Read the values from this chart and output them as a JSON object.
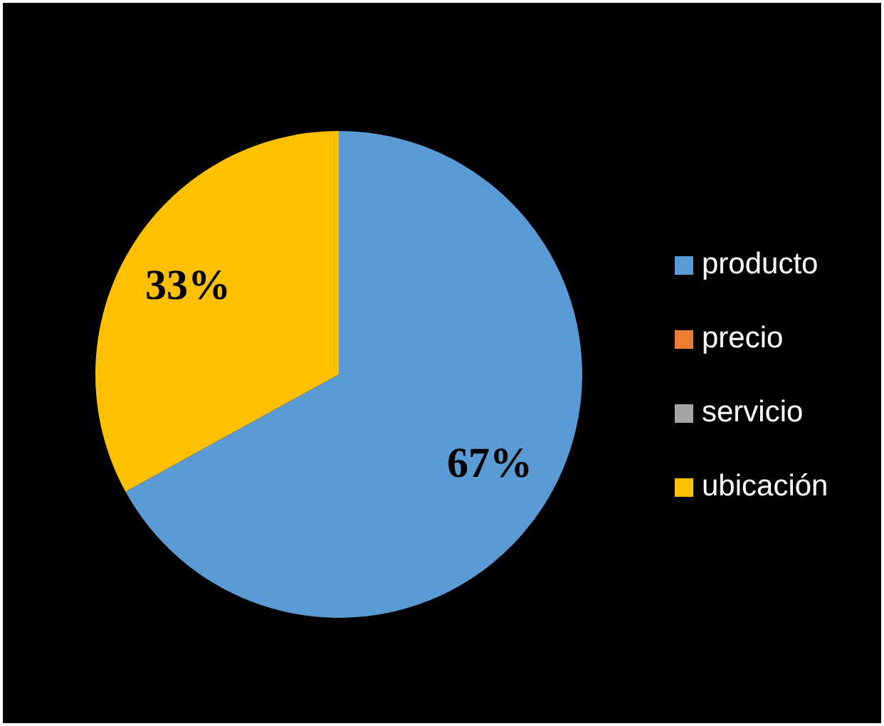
{
  "chart_data": {
    "type": "pie",
    "categories": [
      "producto",
      "precio",
      "servicio",
      "ubicación"
    ],
    "values": [
      67,
      0,
      0,
      33
    ],
    "colors": [
      "#5b9bd5",
      "#ed7d31",
      "#a5a5a5",
      "#ffc000"
    ],
    "value_labels": [
      "67%",
      null,
      null,
      "33%"
    ],
    "legend": "right"
  }
}
